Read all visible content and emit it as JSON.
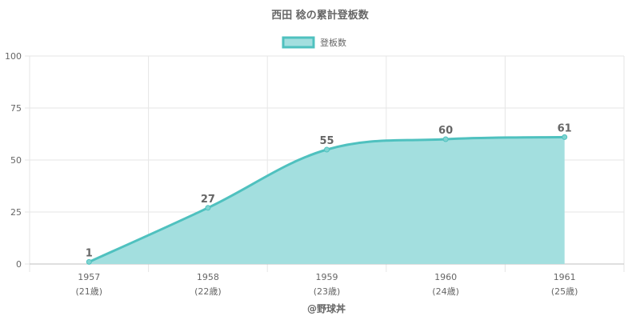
{
  "chart_data": {
    "type": "area",
    "title": "西田 稔の累計登板数",
    "categories": [
      "1957",
      "1958",
      "1959",
      "1960",
      "1961"
    ],
    "category_sublabels": [
      "(21歳)",
      "(22歳)",
      "(23歳)",
      "(24歳)",
      "(25歳)"
    ],
    "series": [
      {
        "name": "登板数",
        "values": [
          1,
          27,
          55,
          60,
          61
        ]
      }
    ],
    "ylim": [
      0,
      100
    ],
    "yticks": [
      0,
      25,
      50,
      75,
      100
    ],
    "grid": true,
    "legend": "top-center",
    "colors": {
      "line": "#4fc1bf",
      "fill": "#a3dfdf",
      "point_fill": "#7fd4d1"
    }
  },
  "footer": "@野球丼"
}
